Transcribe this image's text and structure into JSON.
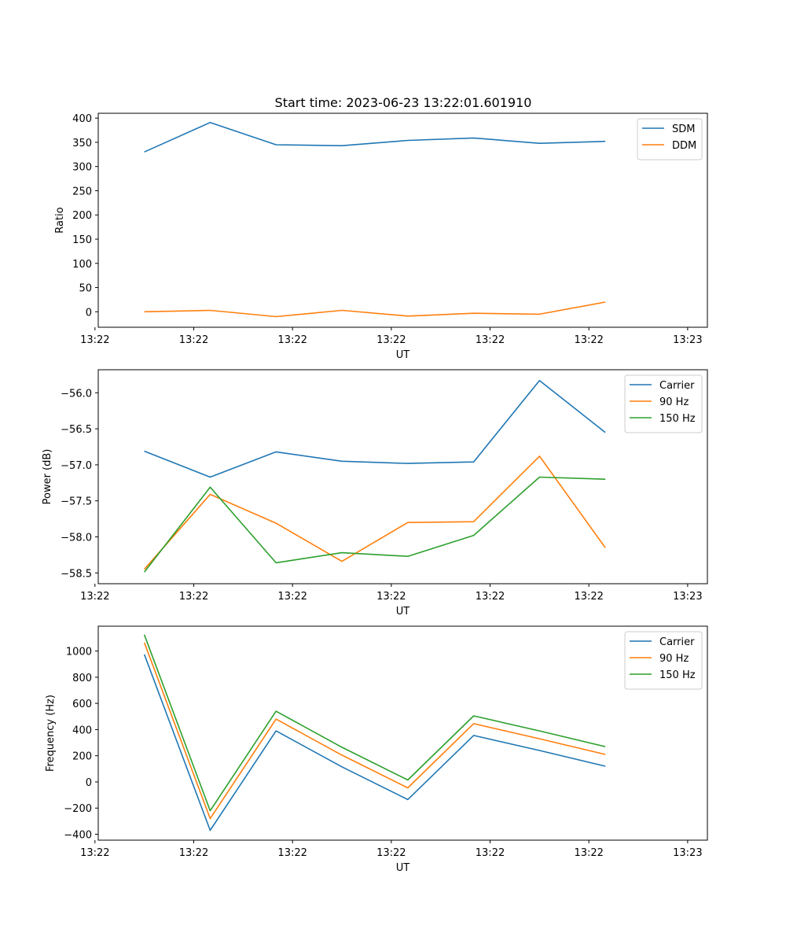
{
  "figure_title": "Start time: 2023-06-23 13:22:01.601910",
  "x_tick_labels": [
    "13:22",
    "13:22",
    "13:22",
    "13:22",
    "13:22",
    "13:22",
    "13:23"
  ],
  "colors": {
    "blue": "#1f77b4",
    "orange": "#ff7f0e",
    "green": "#2ca02c"
  },
  "chart_data": [
    {
      "type": "line",
      "title": "Start time: 2023-06-23 13:22:01.601910",
      "xlabel": "UT",
      "ylabel": "Ratio",
      "x": [
        1,
        2,
        3,
        4,
        5,
        6,
        7,
        8
      ],
      "xlim": [
        0.3,
        9.55
      ],
      "ylim": [
        -32,
        410
      ],
      "yticks": [
        0,
        50,
        100,
        150,
        200,
        250,
        300,
        350,
        400
      ],
      "ytick_labels": [
        "0",
        "50",
        "100",
        "150",
        "200",
        "250",
        "300",
        "350",
        "400"
      ],
      "legend": "top-right",
      "series": [
        {
          "name": "SDM",
          "color": "#1f77b4",
          "values": [
            330,
            391,
            345,
            343,
            354,
            359,
            348,
            352
          ]
        },
        {
          "name": "DDM",
          "color": "#ff7f0e",
          "values": [
            0,
            3,
            -10,
            3,
            -9,
            -3,
            -5,
            20
          ]
        }
      ]
    },
    {
      "type": "line",
      "xlabel": "UT",
      "ylabel": "Power (dB)",
      "x": [
        1,
        2,
        3,
        4,
        5,
        6,
        7,
        8
      ],
      "xlim": [
        0.3,
        9.55
      ],
      "ylim": [
        -58.65,
        -55.68
      ],
      "yticks": [
        -58.5,
        -58.0,
        -57.5,
        -57.0,
        -56.5,
        -56.0
      ],
      "ytick_labels": [
        "−58.5",
        "−58.0",
        "−57.5",
        "−57.0",
        "−56.5",
        "−56.0"
      ],
      "legend": "top-right",
      "series": [
        {
          "name": "Carrier",
          "color": "#1f77b4",
          "values": [
            -56.81,
            -57.17,
            -56.82,
            -56.95,
            -56.98,
            -56.96,
            -55.83,
            -56.55
          ]
        },
        {
          "name": "90 Hz",
          "color": "#ff7f0e",
          "values": [
            -58.45,
            -57.41,
            -57.81,
            -58.34,
            -57.8,
            -57.79,
            -56.88,
            -58.15
          ]
        },
        {
          "name": "150 Hz",
          "color": "#2ca02c",
          "values": [
            -58.49,
            -57.31,
            -58.36,
            -58.22,
            -58.27,
            -57.98,
            -57.17,
            -57.2
          ]
        }
      ]
    },
    {
      "type": "line",
      "xlabel": "UT",
      "ylabel": "Frequency (Hz)",
      "x": [
        1,
        2,
        3,
        4,
        5,
        6,
        7,
        8
      ],
      "xlim": [
        0.3,
        9.55
      ],
      "ylim": [
        -445,
        1190
      ],
      "yticks": [
        -400,
        -200,
        0,
        200,
        400,
        600,
        800,
        1000
      ],
      "ytick_labels": [
        "−400",
        "−200",
        "0",
        "200",
        "400",
        "600",
        "800",
        "1000"
      ],
      "legend": "top-right",
      "series": [
        {
          "name": "Carrier",
          "color": "#1f77b4",
          "values": [
            975,
            -370,
            390,
            115,
            -135,
            355,
            240,
            120
          ]
        },
        {
          "name": "90 Hz",
          "color": "#ff7f0e",
          "values": [
            1065,
            -280,
            480,
            205,
            -45,
            445,
            330,
            210
          ]
        },
        {
          "name": "150 Hz",
          "color": "#2ca02c",
          "values": [
            1125,
            -220,
            540,
            265,
            15,
            505,
            390,
            270
          ]
        }
      ]
    }
  ]
}
